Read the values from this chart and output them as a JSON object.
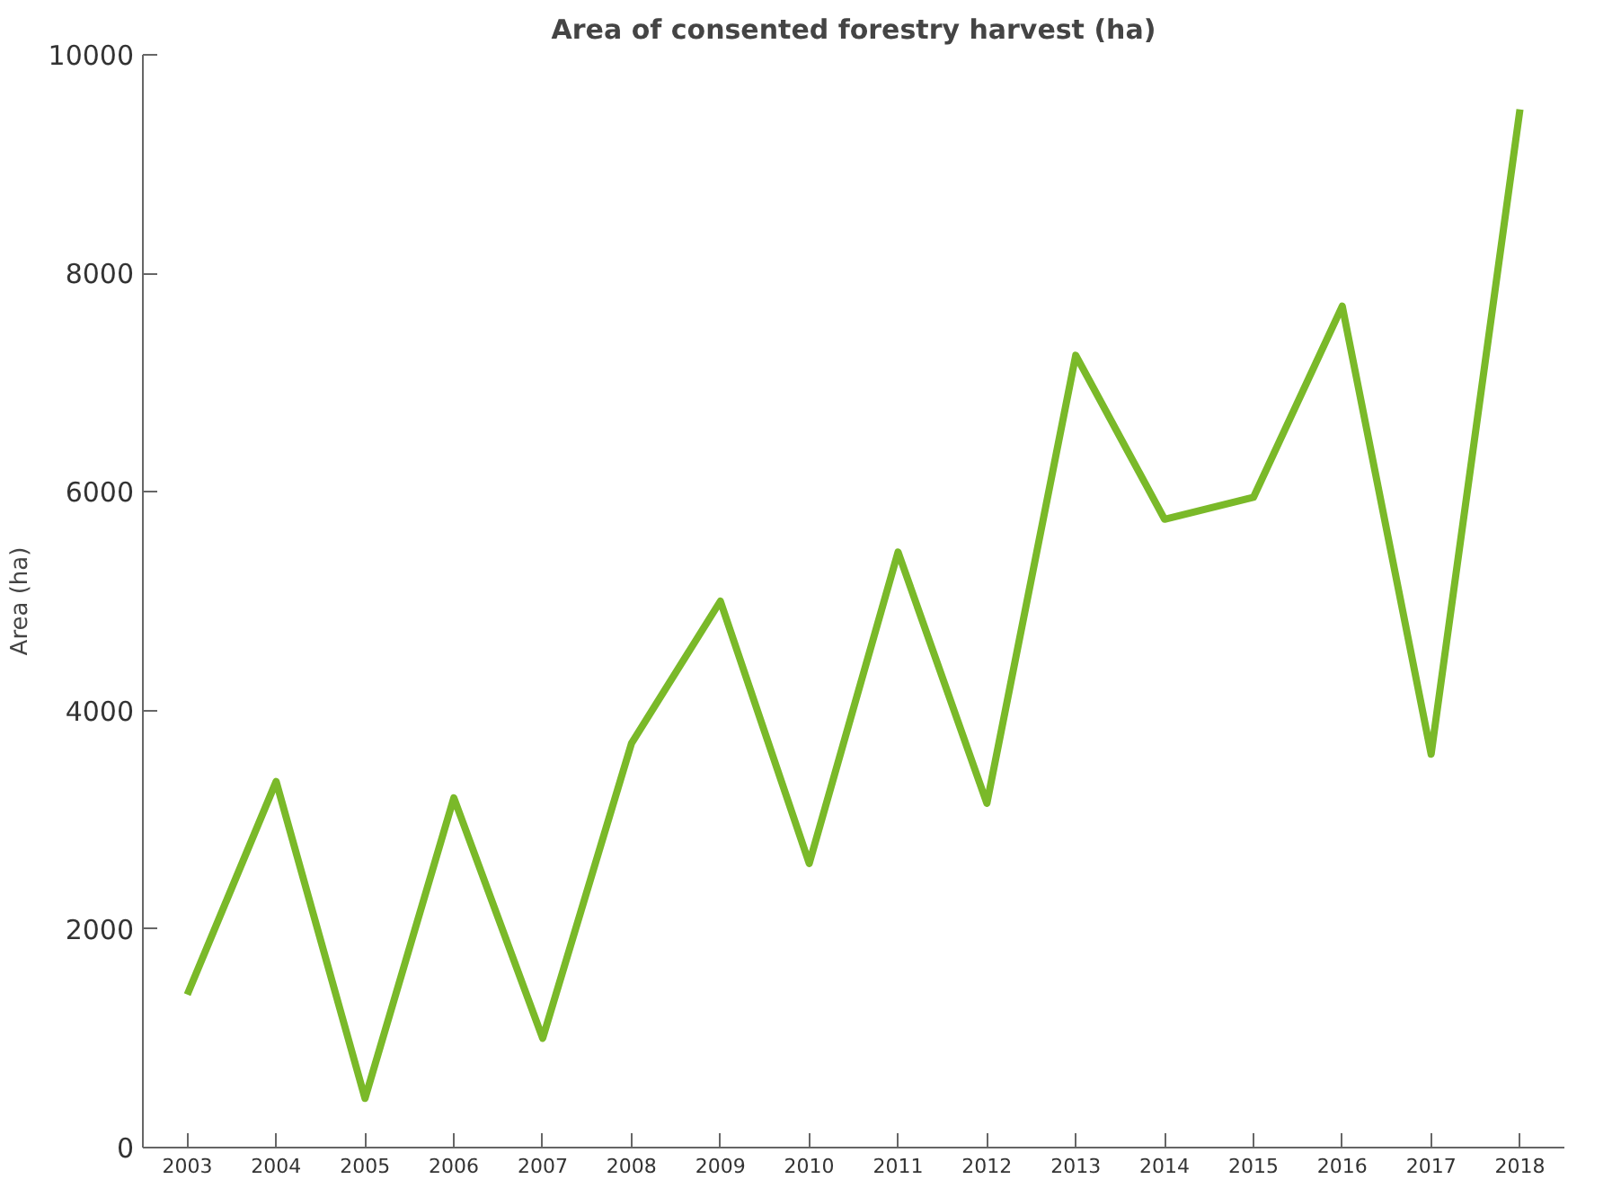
{
  "chart_data": {
    "type": "line",
    "title": "Area of consented forestry harvest (ha)",
    "ylabel": "Area (ha)",
    "categories": [
      "2003",
      "2004",
      "2005",
      "2006",
      "2007",
      "2008",
      "2009",
      "2010",
      "2011",
      "2012",
      "2013",
      "2014",
      "2015",
      "2016",
      "2017",
      "2018"
    ],
    "series": [
      {
        "color": "#7ab929",
        "values": [
          1400,
          3350,
          450,
          3200,
          1000,
          3700,
          5000,
          2600,
          5450,
          3150,
          7250,
          5750,
          5950,
          7700,
          3600,
          9500
        ]
      }
    ],
    "ylim": [
      0,
      10000
    ],
    "yticks": [
      0,
      2000,
      4000,
      6000,
      8000,
      10000
    ],
    "grid": false,
    "marker": "none",
    "line_style": "solid"
  }
}
